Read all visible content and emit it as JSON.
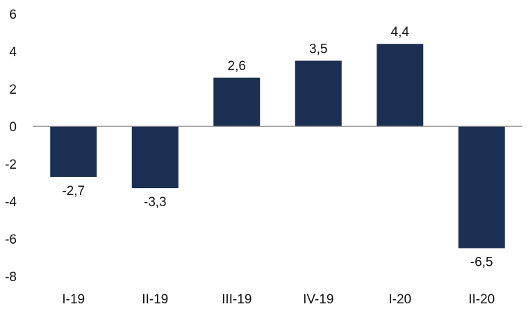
{
  "chart_data": {
    "type": "bar",
    "categories": [
      "I-19",
      "II-19",
      "III-19",
      "IV-19",
      "I-20",
      "II-20"
    ],
    "values": [
      -2.7,
      -3.3,
      2.6,
      3.5,
      4.4,
      -6.5
    ],
    "data_labels": [
      "-2,7",
      "-3,3",
      "2,6",
      "3,5",
      "4,4",
      "-6,5"
    ],
    "y_ticks": [
      6,
      4,
      2,
      0,
      -2,
      -4,
      -6,
      -8
    ],
    "y_tick_labels": [
      "6",
      "4",
      "2",
      "0",
      "-2",
      "-4",
      "-6",
      "-8"
    ],
    "ylim": [
      -8,
      6
    ],
    "grid": false,
    "legend": "none",
    "bar_color": "#1b2f52",
    "axis_color": "#8c8c8c"
  }
}
